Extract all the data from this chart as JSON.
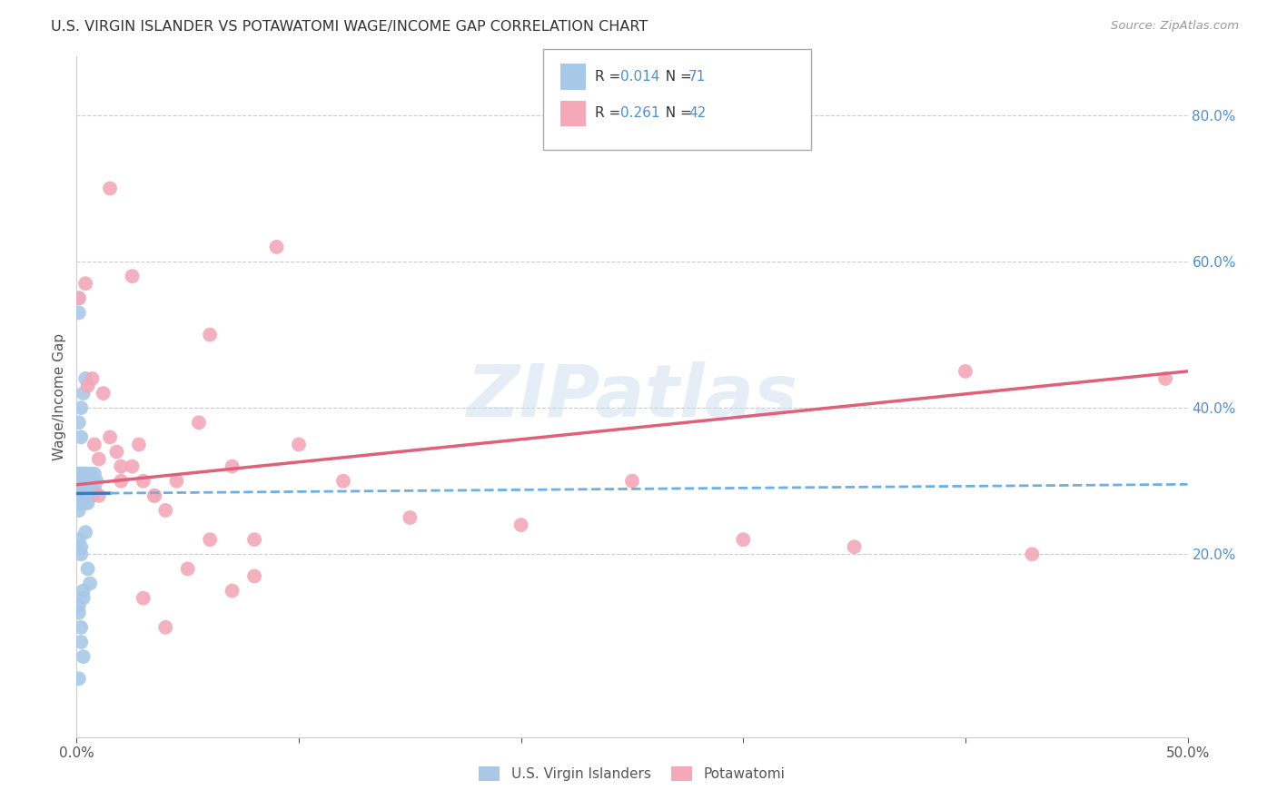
{
  "title": "U.S. VIRGIN ISLANDER VS POTAWATOMI WAGE/INCOME GAP CORRELATION CHART",
  "source": "Source: ZipAtlas.com",
  "ylabel": "Wage/Income Gap",
  "xlim": [
    0.0,
    0.5
  ],
  "ylim": [
    -0.05,
    0.88
  ],
  "grid_color": "#cccccc",
  "background_color": "#ffffff",
  "series1_color": "#a8c8e8",
  "series2_color": "#f4a8b8",
  "trendline1_solid_color": "#3a7abf",
  "trendline1_dash_color": "#6ab0e8",
  "trendline2_color": "#e0607a",
  "watermark": "ZIPatlas",
  "legend_R1": "0.014",
  "legend_N1": "71",
  "legend_R2": "0.261",
  "legend_N2": "42",
  "vi_x": [
    0.001,
    0.001,
    0.001,
    0.001,
    0.001,
    0.001,
    0.001,
    0.001,
    0.001,
    0.001,
    0.001,
    0.001,
    0.001,
    0.001,
    0.001,
    0.002,
    0.002,
    0.002,
    0.002,
    0.002,
    0.002,
    0.002,
    0.002,
    0.002,
    0.002,
    0.003,
    0.003,
    0.003,
    0.003,
    0.003,
    0.003,
    0.003,
    0.004,
    0.004,
    0.004,
    0.004,
    0.004,
    0.005,
    0.005,
    0.005,
    0.005,
    0.006,
    0.006,
    0.006,
    0.007,
    0.007,
    0.007,
    0.008,
    0.008,
    0.009,
    0.001,
    0.001,
    0.001,
    0.002,
    0.002,
    0.003,
    0.003,
    0.004,
    0.005,
    0.006,
    0.001,
    0.002,
    0.002,
    0.003,
    0.004,
    0.001,
    0.001,
    0.002,
    0.002,
    0.003,
    0.001
  ],
  "vi_y": [
    0.28,
    0.29,
    0.3,
    0.31,
    0.27,
    0.26,
    0.28,
    0.29,
    0.3,
    0.28,
    0.27,
    0.29,
    0.28,
    0.27,
    0.29,
    0.3,
    0.29,
    0.31,
    0.28,
    0.27,
    0.3,
    0.29,
    0.28,
    0.3,
    0.27,
    0.31,
    0.3,
    0.29,
    0.28,
    0.27,
    0.3,
    0.29,
    0.31,
    0.29,
    0.28,
    0.3,
    0.27,
    0.3,
    0.29,
    0.28,
    0.27,
    0.31,
    0.3,
    0.28,
    0.3,
    0.29,
    0.28,
    0.31,
    0.29,
    0.3,
    0.55,
    0.53,
    0.22,
    0.2,
    0.21,
    0.15,
    0.14,
    0.23,
    0.18,
    0.16,
    0.38,
    0.36,
    0.4,
    0.42,
    0.44,
    0.13,
    0.12,
    0.1,
    0.08,
    0.06,
    0.03
  ],
  "pot_x": [
    0.001,
    0.004,
    0.005,
    0.007,
    0.008,
    0.01,
    0.012,
    0.015,
    0.018,
    0.02,
    0.025,
    0.028,
    0.03,
    0.035,
    0.04,
    0.045,
    0.055,
    0.06,
    0.07,
    0.08,
    0.1,
    0.12,
    0.15,
    0.2,
    0.25,
    0.3,
    0.35,
    0.4,
    0.43,
    0.49,
    0.01,
    0.02,
    0.03,
    0.04,
    0.06,
    0.08,
    0.015,
    0.025,
    0.035,
    0.05,
    0.07,
    0.09
  ],
  "pot_y": [
    0.55,
    0.57,
    0.43,
    0.44,
    0.35,
    0.33,
    0.42,
    0.36,
    0.34,
    0.3,
    0.32,
    0.35,
    0.3,
    0.28,
    0.26,
    0.3,
    0.38,
    0.5,
    0.32,
    0.22,
    0.35,
    0.3,
    0.25,
    0.24,
    0.3,
    0.22,
    0.21,
    0.45,
    0.2,
    0.44,
    0.28,
    0.32,
    0.14,
    0.1,
    0.22,
    0.17,
    0.7,
    0.58,
    0.28,
    0.18,
    0.15,
    0.62
  ]
}
